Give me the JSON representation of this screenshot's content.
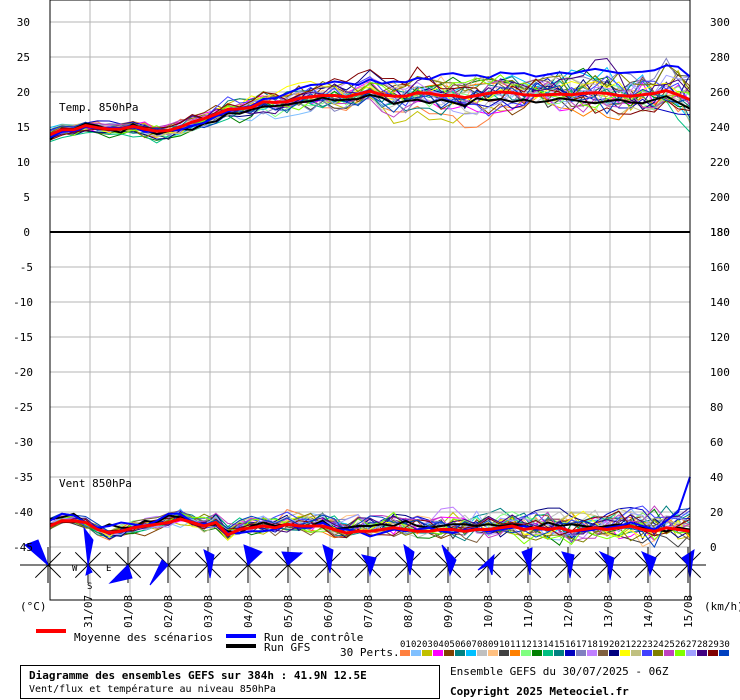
{
  "chart_data": [
    {
      "type": "line",
      "panel": "temperature",
      "label": "Temp. 850hPa",
      "left_axis_ticks": [
        "30",
        "25",
        "20",
        "15",
        "10",
        "5",
        "0"
      ],
      "left_axis_values": [
        30,
        25,
        20,
        15,
        10,
        5,
        0
      ],
      "right_axis_ticks": [
        "300",
        "280",
        "260",
        "240",
        "220",
        "200",
        "180"
      ],
      "ylim": [
        0,
        30
      ],
      "grid": true,
      "mean_series": {
        "name": "Moyenne des scénarios",
        "color": "#ff0000",
        "values": [
          13.9,
          14.6,
          14.6,
          15.2,
          14.9,
          14.7,
          14.7,
          15.1,
          14.7,
          14.4,
          14.5,
          15.0,
          15.7,
          16.2,
          16.8,
          17.5,
          17.6,
          17.8,
          18.6,
          18.5,
          18.6,
          19.1,
          19.3,
          19.5,
          19.5,
          19.3,
          19.7,
          20.1,
          19.6,
          19.4,
          19.4,
          19.9,
          19.8,
          19.5,
          19.5,
          19.2,
          19.5,
          19.8,
          20.0,
          19.9,
          19.6,
          19.5,
          19.6,
          19.7,
          19.6,
          19.8,
          19.9,
          19.8,
          19.5,
          19.4,
          19.6,
          19.8,
          20.2,
          19.6,
          18.9
        ]
      },
      "control_series": {
        "name": "Run de contrôle",
        "color": "#0000ff",
        "values": [
          13.5,
          14.3,
          14.4,
          15.0,
          14.8,
          14.9,
          14.9,
          15.0,
          14.3,
          14.4,
          14.5,
          14.6,
          15.2,
          15.6,
          16.5,
          17.2,
          17.7,
          18.0,
          19.0,
          19.1,
          19.8,
          20.5,
          21.0,
          21.1,
          21.5,
          21.3,
          21.0,
          21.8,
          21.2,
          21.5,
          21.4,
          22.0,
          21.8,
          22.5,
          22.7,
          22.3,
          22.4,
          22.0,
          22.8,
          22.6,
          22.7,
          22.2,
          22.5,
          22.8,
          22.6,
          23.0,
          23.3,
          23.0,
          22.7,
          22.8,
          22.9,
          23.1,
          23.8,
          23.6,
          22.2
        ]
      },
      "gfs_series": {
        "name": "Run GFS",
        "color": "#000000",
        "values": [
          13.2,
          14.8,
          14.7,
          15.5,
          15.2,
          14.6,
          14.2,
          15.4,
          14.5,
          14.0,
          14.4,
          14.7,
          14.6,
          15.5,
          15.8,
          17.0,
          16.9,
          17.5,
          17.9,
          18.0,
          18.2,
          18.5,
          18.7,
          19.2,
          18.8,
          18.9,
          19.0,
          19.6,
          19.2,
          18.3,
          18.7,
          18.9,
          18.4,
          18.9,
          18.5,
          18.0,
          19.1,
          18.8,
          19.0,
          18.6,
          18.9,
          18.5,
          18.7,
          19.1,
          18.9,
          18.6,
          18.4,
          18.7,
          18.9,
          18.5,
          18.4,
          18.9,
          19.4,
          18.5,
          17.6
        ]
      }
    },
    {
      "type": "line",
      "panel": "wind",
      "label": "Vent 850hPa",
      "left_axis_ticks": [
        "0",
        "-5",
        "-10",
        "-15",
        "-20",
        "-25",
        "-30",
        "-35",
        "-40",
        "-45"
      ],
      "left_axis_values": [
        0,
        -5,
        -10,
        -15,
        -20,
        -25,
        -30,
        -35,
        -40,
        -45
      ],
      "right_axis_ticks": [
        "180",
        "160",
        "140",
        "120",
        "100",
        "80",
        "60",
        "40",
        "20",
        "0"
      ],
      "right_axis_values": [
        180,
        160,
        140,
        120,
        100,
        80,
        60,
        40,
        20,
        0
      ],
      "ylim_kmh": [
        0,
        180
      ],
      "unit": "km/h",
      "mean_series": {
        "name": "Moyenne des scénarios",
        "color": "#ff0000",
        "values": [
          12,
          15,
          15,
          14,
          10,
          8,
          9,
          11,
          12,
          13,
          14,
          16,
          14,
          12,
          14,
          7,
          10,
          11,
          12,
          11,
          13,
          12,
          12,
          12,
          10,
          8,
          9,
          9,
          10,
          11,
          10,
          9,
          9,
          10,
          10,
          9,
          10,
          10,
          11,
          12,
          10,
          11,
          10,
          11,
          9,
          10,
          11,
          10,
          11,
          12,
          10,
          9,
          11,
          10,
          9
        ]
      },
      "control_series": {
        "name": "Run de contrôle",
        "color": "#0000ff",
        "values": [
          15,
          19,
          18,
          14,
          11,
          12,
          14,
          13,
          12,
          15,
          19,
          19,
          14,
          13,
          14,
          8,
          8,
          9,
          9,
          10,
          13,
          11,
          11,
          14,
          10,
          10,
          9,
          6,
          8,
          10,
          9,
          10,
          11,
          9,
          8,
          10,
          10,
          9,
          10,
          11,
          12,
          10,
          10,
          11,
          9,
          9,
          10,
          11,
          12,
          14,
          12,
          10,
          15,
          20,
          40
        ]
      },
      "gfs_series": {
        "name": "Run GFS",
        "color": "#000000",
        "values": [
          16,
          17,
          19,
          14,
          10,
          13,
          11,
          11,
          15,
          14,
          18,
          17,
          14,
          12,
          13,
          9,
          8,
          12,
          14,
          12,
          13,
          12,
          12,
          15,
          10,
          11,
          12,
          12,
          13,
          12,
          15,
          12,
          11,
          12,
          13,
          13,
          12,
          13,
          12,
          13,
          12,
          11,
          14,
          12,
          13,
          12,
          11,
          12,
          13,
          12,
          11,
          10,
          9,
          11,
          10
        ]
      }
    }
  ],
  "wind_roses": {
    "left_label": "(°C)",
    "right_label": "(km/h)",
    "compass": {
      "w": "W",
      "s": "S",
      "e": "E"
    }
  },
  "x_axis": {
    "date_labels": [
      "31/07",
      "01/08",
      "02/08",
      "03/08",
      "04/08",
      "05/08",
      "06/08",
      "07/08",
      "08/08",
      "09/08",
      "10/08",
      "11/08",
      "12/08",
      "13/08",
      "14/08",
      "15/08"
    ]
  },
  "legend": {
    "mean": {
      "label": "Moyenne des scénarios",
      "color": "#ff0000"
    },
    "control": {
      "label": "Run de contrôle",
      "color": "#0000ff"
    },
    "gfs": {
      "label": "Run GFS",
      "color": "#000000"
    },
    "perts_label": "30 Perts.",
    "perts_numbers": [
      "01",
      "02",
      "03",
      "04",
      "05",
      "06",
      "07",
      "08",
      "09",
      "10",
      "11",
      "12",
      "13",
      "14",
      "15",
      "16",
      "17",
      "18",
      "19",
      "20",
      "21",
      "22",
      "23",
      "24",
      "25",
      "26",
      "27",
      "28",
      "29",
      "30"
    ],
    "perts_colors": [
      "#ff8040",
      "#80c0ff",
      "#c0c000",
      "#ff00ff",
      "#804000",
      "#008080",
      "#00c0ff",
      "#c0c0c0",
      "#ffc080",
      "#404040",
      "#ff8000",
      "#80ff80",
      "#008000",
      "#00c080",
      "#008080",
      "#0000c0",
      "#8080c0",
      "#c080ff",
      "#806040",
      "#000080",
      "#ffff00",
      "#c0c080",
      "#4040ff",
      "#808000",
      "#c040c0",
      "#80ff00",
      "#a0a0ff",
      "#400080",
      "#800000",
      "#0040c0"
    ]
  },
  "info_box": {
    "line1": "Diagramme des ensembles GEFS sur 384h : 41.9N 12.5E",
    "line2": "Vent/flux et température au niveau 850hPa"
  },
  "run_info": "Ensemble GEFS du 30/07/2025 - 06Z",
  "copyright": "Copyright 2025 Meteociel.fr"
}
